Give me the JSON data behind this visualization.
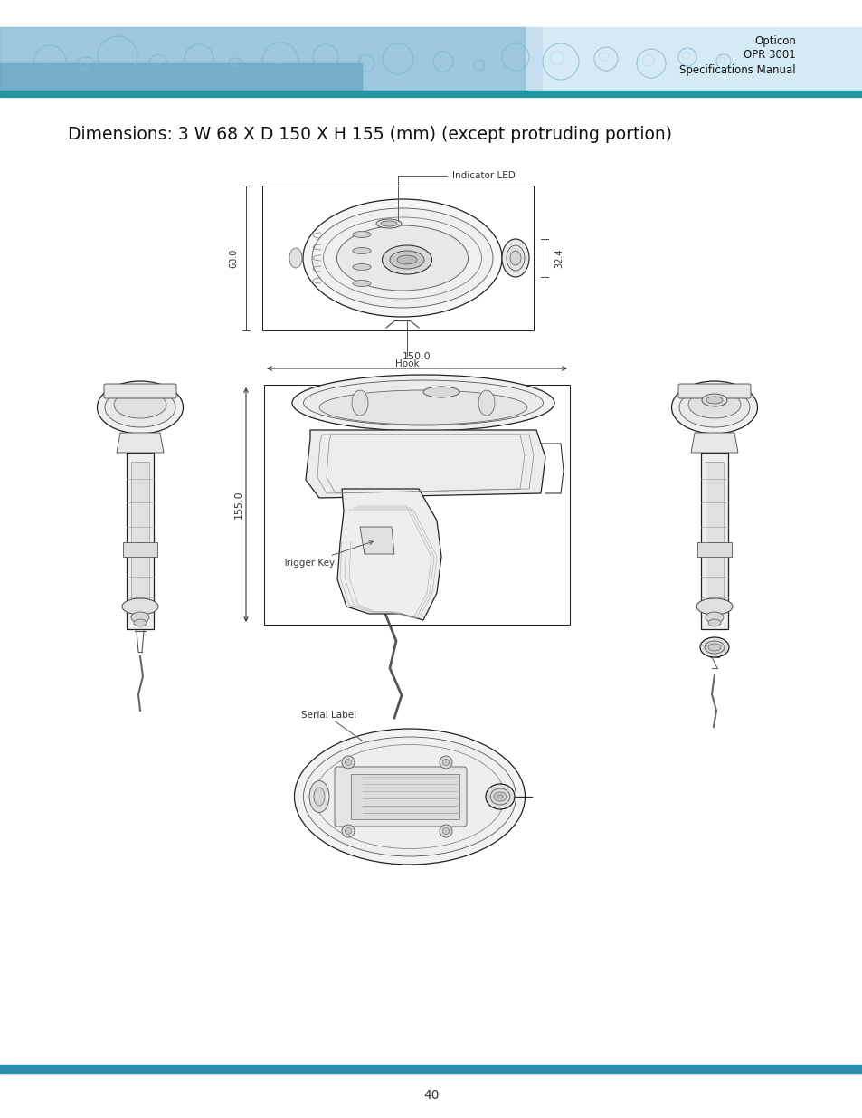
{
  "title": "Dimensions: 3 W 68 X D 150 X H 155 (mm) (except protruding portion)",
  "header_text_line1": "Opticon",
  "header_text_line2": "OPR 3001",
  "header_text_line3": "Specifications Manual",
  "page_number": "40",
  "header_bar_color": "#2b8cad",
  "footer_bar_color": "#2b8cad",
  "background_color": "#ffffff",
  "dim_68": "68.0",
  "dim_32": "32.4",
  "dim_150": "150.0",
  "dim_155": "155.0",
  "label_indicator_led": "Indicator LED",
  "label_hook": "Hook",
  "label_trigger_key": "Trigger Key",
  "label_serial_label": "Serial Label",
  "lc": "#222222",
  "lw": 0.9,
  "flc": "#f0f0f0"
}
